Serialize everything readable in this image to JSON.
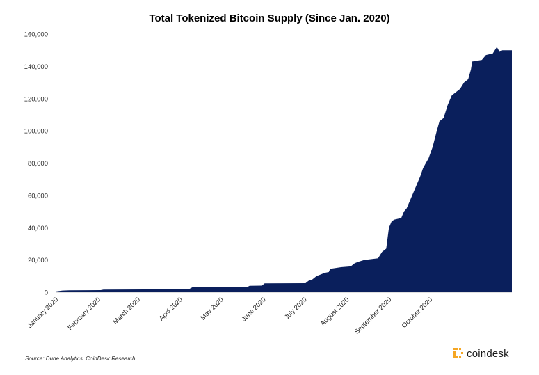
{
  "chart_data": {
    "type": "area",
    "title": "Total Tokenized Bitcoin Supply (Since Jan. 2020)",
    "xlabel": "",
    "ylabel": "",
    "ylim": [
      0,
      160000
    ],
    "y_ticks": [
      0,
      20000,
      40000,
      60000,
      80000,
      100000,
      120000,
      140000,
      160000
    ],
    "y_tick_labels": [
      "0",
      "20,000",
      "40,000",
      "60,000",
      "80,000",
      "100,000",
      "120,000",
      "140,000",
      "160,000"
    ],
    "x_range_days": [
      0,
      334
    ],
    "months": [
      {
        "label": "January 2020",
        "day": 0
      },
      {
        "label": "February 2020",
        "day": 31
      },
      {
        "label": "March 2020",
        "day": 60
      },
      {
        "label": "April 2020",
        "day": 91
      },
      {
        "label": "May 2020",
        "day": 121
      },
      {
        "label": "June 2020",
        "day": 152
      },
      {
        "label": "July 2020",
        "day": 182
      },
      {
        "label": "August 2020",
        "day": 213
      },
      {
        "label": "September 2020",
        "day": 244
      },
      {
        "label": "October 2020",
        "day": 274
      }
    ],
    "series": [
      {
        "name": "Total Tokenized Bitcoin Supply",
        "color": "#0a1f5c",
        "points": [
          [
            0,
            500
          ],
          [
            5,
            1000
          ],
          [
            10,
            1200
          ],
          [
            33,
            1300
          ],
          [
            35,
            1600
          ],
          [
            65,
            1700
          ],
          [
            67,
            2000
          ],
          [
            98,
            2100
          ],
          [
            100,
            3000
          ],
          [
            140,
            3100
          ],
          [
            142,
            4000
          ],
          [
            151,
            4100
          ],
          [
            153,
            5500
          ],
          [
            183,
            5600
          ],
          [
            185,
            7000
          ],
          [
            188,
            8000
          ],
          [
            191,
            10000
          ],
          [
            194,
            11000
          ],
          [
            197,
            12000
          ],
          [
            200,
            12500
          ],
          [
            201,
            14500
          ],
          [
            209,
            15500
          ],
          [
            216,
            16000
          ],
          [
            219,
            18000
          ],
          [
            222,
            19000
          ],
          [
            226,
            20000
          ],
          [
            236,
            21000
          ],
          [
            239,
            25000
          ],
          [
            242,
            27000
          ],
          [
            244,
            40000
          ],
          [
            246,
            44000
          ],
          [
            248,
            45000
          ],
          [
            253,
            46000
          ],
          [
            255,
            50000
          ],
          [
            257,
            52000
          ],
          [
            261,
            60000
          ],
          [
            264,
            66000
          ],
          [
            267,
            72000
          ],
          [
            269,
            77000
          ],
          [
            271,
            80000
          ],
          [
            273,
            83000
          ],
          [
            276,
            90000
          ],
          [
            279,
            100000
          ],
          [
            281,
            106000
          ],
          [
            284,
            108000
          ],
          [
            287,
            116000
          ],
          [
            290,
            122000
          ],
          [
            293,
            124000
          ],
          [
            296,
            126000
          ],
          [
            299,
            130000
          ],
          [
            302,
            132000
          ],
          [
            304,
            138000
          ],
          [
            305,
            143000
          ],
          [
            312,
            144000
          ],
          [
            315,
            147000
          ],
          [
            320,
            148000
          ],
          [
            323,
            152000
          ],
          [
            325,
            149000
          ],
          [
            327,
            150000
          ],
          [
            330,
            150000
          ],
          [
            334,
            150000
          ]
        ]
      }
    ]
  },
  "source": "Source: Dune Analytics, CoinDesk Research",
  "brand": {
    "name": "coindesk",
    "logo_color": "#f5a623"
  }
}
